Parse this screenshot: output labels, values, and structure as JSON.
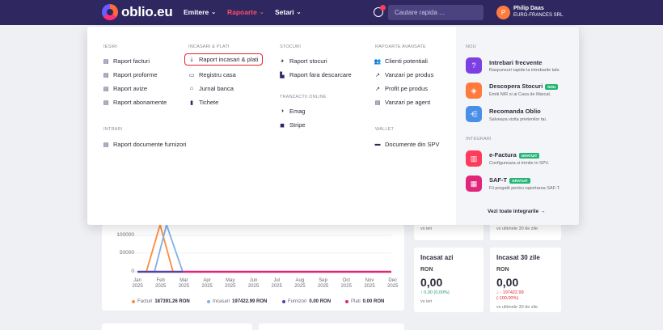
{
  "header": {
    "logo_text": "oblio.eu",
    "nav": [
      {
        "label": "Emitere"
      },
      {
        "label": "Rapoarte"
      },
      {
        "label": "Setari"
      }
    ],
    "search_placeholder": "Cautare rapida ...",
    "user_initial": "P",
    "user_name": "Philip Daas",
    "user_company": "EURO-FRANCES SRL",
    "accent": "#ff4f6a",
    "bar_color": "#2e2760"
  },
  "menu": {
    "iesiri": {
      "title": "IESIRI",
      "items": [
        "Raport facturi",
        "Raport proforme",
        "Raport avize",
        "Raport abonamente"
      ]
    },
    "intrari": {
      "title": "INTRARI",
      "items": [
        "Raport documente furnizori"
      ]
    },
    "incasari": {
      "title": "INCASARI & PLATI",
      "items": [
        "Raport incasari & plati",
        "Registru casa",
        "Jurnal banca",
        "Tichete"
      ]
    },
    "stocuri": {
      "title": "STOCURI",
      "items": [
        "Raport stocuri",
        "Raport fara descarcare"
      ]
    },
    "tranzactii": {
      "title": "TRANZACTII ONLINE",
      "items": [
        "Emag",
        "Stripe"
      ]
    },
    "avansate": {
      "title": "RAPOARTE AVANSATE",
      "items": [
        "Clienti potentiali",
        "Vanzari pe produs",
        "Profit pe produs",
        "Vanzari pe agent"
      ]
    },
    "wallet": {
      "title": "WALLET",
      "items": [
        "Documente din SPV"
      ]
    },
    "side": {
      "nou_title": "NOU",
      "nou": [
        {
          "title": "Intrebari frecvente",
          "desc": "Raspunsuri rapide la intrebarile tale.",
          "badge": "",
          "color": "#7b3fe4"
        },
        {
          "title": "Descopera Stocuri",
          "desc": "Emiti NIR si ai Casa de Marcat.",
          "badge": "NOU",
          "color": "#ff7a3d"
        },
        {
          "title": "Recomanda Oblio",
          "desc": "Salveaza vizita prietenilor tai.",
          "badge": "",
          "color": "#4a8fe7"
        }
      ],
      "integrari_title": "INTEGRARI",
      "integrari": [
        {
          "title": "e-Factura",
          "desc": "Configureaza si trimite in SPV.",
          "badge": "GRATUIT",
          "color": "#ff3b5c"
        },
        {
          "title": "SAF-T",
          "desc": "Fii pregatit pentru raportarea SAF-T.",
          "badge": "GRATUIT",
          "color": "#e0257a"
        }
      ],
      "see_all": "Vezi toate integrarile →"
    }
  },
  "background": {
    "chart_y_ticks": [
      "100000",
      "50000",
      "0"
    ],
    "chart_months": [
      {
        "m": "Jan",
        "y": "2025"
      },
      {
        "m": "Feb",
        "y": "2025"
      },
      {
        "m": "Mar",
        "y": "2025"
      },
      {
        "m": "Apr",
        "y": "2025"
      },
      {
        "m": "May",
        "y": "2025"
      },
      {
        "m": "Jun",
        "y": "2025"
      },
      {
        "m": "Jul",
        "y": "2025"
      },
      {
        "m": "Aug",
        "y": "2025"
      },
      {
        "m": "Sep",
        "y": "2025"
      },
      {
        "m": "Oct",
        "y": "2025"
      },
      {
        "m": "Nov",
        "y": "2025"
      },
      {
        "m": "Dec",
        "y": "2025"
      }
    ],
    "legend": [
      {
        "label": "Facturi",
        "value": "187391.26 RON",
        "color": "#ff8a3d"
      },
      {
        "label": "Incasari",
        "value": "197422.99 RON",
        "color": "#7fb0e8"
      },
      {
        "label": "Furnizori",
        "value": "0.00 RON",
        "color": "#5a3fa8"
      },
      {
        "label": "Plati",
        "value": "0.00 RON",
        "color": "#e0257a"
      }
    ],
    "stat_top_left_sub": "vs ieri",
    "stat_top_right_sub": "vs ultimele 30 de zile",
    "stat_left": {
      "title": "Incasat azi",
      "currency": "RON",
      "value": "0,00",
      "delta": "↑ 0,00 (0,00%)",
      "sub": "vs ieri",
      "delta_color": "#22a06b"
    },
    "stat_right": {
      "title": "Incasat 30 zile",
      "currency": "RON",
      "value": "0,00",
      "delta": "↓ - 197422.99",
      "delta2": "(-100,00%)",
      "sub": "vs ultimele 30 de zile",
      "delta_color": "#e5222f"
    }
  }
}
